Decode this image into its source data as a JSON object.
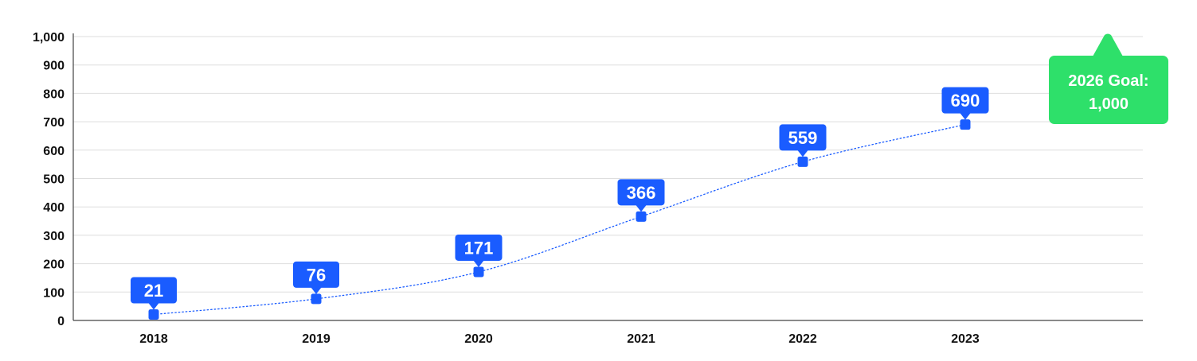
{
  "chart_data": {
    "type": "line",
    "title": "",
    "xlabel": "",
    "ylabel": "",
    "categories": [
      "2018",
      "2019",
      "2020",
      "2021",
      "2022",
      "2023"
    ],
    "series": [
      {
        "values": [
          21,
          76,
          171,
          366,
          559,
          690
        ]
      }
    ],
    "data_labels": [
      "21",
      "76",
      "171",
      "366",
      "559",
      "690"
    ],
    "ylim": [
      0,
      1000
    ],
    "y_ticks": [
      0,
      100,
      200,
      300,
      400,
      500,
      600,
      700,
      800,
      900,
      1000
    ],
    "y_tick_labels": [
      "0",
      "100",
      "200",
      "300",
      "400",
      "500",
      "600",
      "700",
      "800",
      "900",
      "1,000"
    ],
    "grid": true,
    "line_style": "dotted",
    "marker": "square",
    "goal": {
      "value": 1000,
      "label_line1": "2026 Goal:",
      "label_line2": "1,000"
    },
    "colors": {
      "series": "#1a5cff",
      "goal": "#2ee06a",
      "grid": "#dedede",
      "axis": "#444444"
    }
  }
}
